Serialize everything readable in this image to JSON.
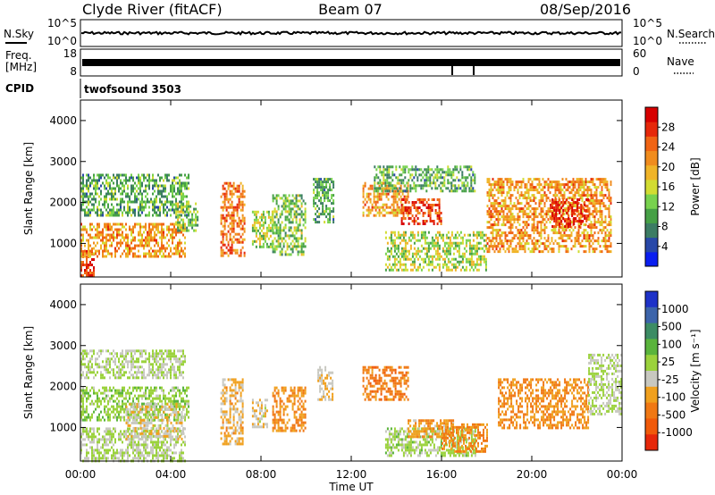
{
  "header": {
    "station": "Clyde River (fitACF)",
    "beam": "Beam 07",
    "date": "08/Sep/2016"
  },
  "panels": {
    "nsky_label": "N.Sky",
    "nsky_ticks": [
      "10^5",
      "10^0"
    ],
    "nsearch_label": "N.Search",
    "nsearch_ticks": [
      "10^5",
      "10^0"
    ],
    "freq_label_line1": "Freq.",
    "freq_label_line2": "[MHz]",
    "freq_ticks": [
      "18",
      "8"
    ],
    "nave_label": "Nave",
    "nave_ticks": [
      "60",
      "0"
    ],
    "cpid_label": "CPID",
    "cpid_value": "twofsound 3503"
  },
  "x_axis": {
    "label": "Time UT",
    "ticks": [
      "00:00",
      "04:00",
      "08:00",
      "12:00",
      "16:00",
      "20:00",
      "00:00"
    ]
  },
  "colors": {
    "power_scale": [
      "#0a1ef0",
      "#2848a8",
      "#3c7c64",
      "#46a046",
      "#78d24e",
      "#d2dc32",
      "#f0b428",
      "#f08c1e",
      "#f06414",
      "#e6280a",
      "#d70000"
    ],
    "velocity_scale": [
      "#1e32c8",
      "#3c64aa",
      "#3c8c64",
      "#5ab43c",
      "#9bd23c",
      "#c8c8c0",
      "#f0a01e",
      "#f07814",
      "#f05a0a",
      "#e6280a"
    ]
  },
  "chart_data": [
    {
      "type": "heatmap",
      "title": "Power",
      "xlabel": "Time UT",
      "ylabel": "Slant Range [km]",
      "xlim": [
        0,
        24
      ],
      "ylim": [
        180,
        4500
      ],
      "y_ticks": [
        1000,
        2000,
        3000,
        4000
      ],
      "colorbar": {
        "label": "Power [dB]",
        "ticks": [
          "4",
          "8",
          "12",
          "16",
          "20",
          "24",
          "28"
        ],
        "range": [
          0,
          30
        ]
      },
      "echo_regions": [
        {
          "t": [
            0.0,
            0.6
          ],
          "r": [
            200,
            900
          ],
          "value": 26
        },
        {
          "t": [
            0.0,
            4.6
          ],
          "r": [
            700,
            1500
          ],
          "value": 20
        },
        {
          "t": [
            0.0,
            4.8
          ],
          "r": [
            1700,
            2700
          ],
          "value": 10
        },
        {
          "t": [
            4.2,
            5.2
          ],
          "r": [
            1300,
            2000
          ],
          "value": 12
        },
        {
          "t": [
            6.2,
            7.3
          ],
          "r": [
            700,
            2500
          ],
          "value": 22
        },
        {
          "t": [
            7.6,
            8.5
          ],
          "r": [
            900,
            1800
          ],
          "value": 14
        },
        {
          "t": [
            8.5,
            10.0
          ],
          "r": [
            700,
            2200
          ],
          "value": 12
        },
        {
          "t": [
            10.3,
            11.2
          ],
          "r": [
            1500,
            2600
          ],
          "value": 10
        },
        {
          "t": [
            12.5,
            14.5
          ],
          "r": [
            1700,
            2500
          ],
          "value": 20
        },
        {
          "t": [
            14.2,
            16.0
          ],
          "r": [
            1500,
            2100
          ],
          "value": 26
        },
        {
          "t": [
            13.5,
            18.0
          ],
          "r": [
            350,
            1300
          ],
          "value": 14
        },
        {
          "t": [
            13.0,
            17.5
          ],
          "r": [
            2300,
            2900
          ],
          "value": 10
        },
        {
          "t": [
            18.0,
            23.5
          ],
          "r": [
            800,
            2600
          ],
          "value": 20
        },
        {
          "t": [
            20.8,
            22.5
          ],
          "r": [
            1400,
            2100
          ],
          "value": 27
        }
      ]
    },
    {
      "type": "heatmap",
      "title": "Velocity",
      "xlabel": "Time UT",
      "ylabel": "Slant Range [km]",
      "xlim": [
        0,
        24
      ],
      "ylim": [
        180,
        4500
      ],
      "y_ticks": [
        1000,
        2000,
        3000,
        4000
      ],
      "colorbar": {
        "label": "Velocity [m s⁻¹]",
        "ticks": [
          "1000",
          "500",
          "100",
          "25",
          "-25",
          "-100",
          "-500",
          "-1000"
        ],
        "range": [
          -1200,
          1200
        ]
      },
      "echo_regions": [
        {
          "t": [
            0.0,
            4.6
          ],
          "r": [
            2200,
            2900
          ],
          "value": 0
        },
        {
          "t": [
            0.0,
            4.8
          ],
          "r": [
            1200,
            2000
          ],
          "value": 150
        },
        {
          "t": [
            0.0,
            4.6
          ],
          "r": [
            200,
            1000
          ],
          "value": 0
        },
        {
          "t": [
            2.0,
            4.6
          ],
          "r": [
            700,
            1600
          ],
          "value": -150
        },
        {
          "t": [
            6.2,
            7.2
          ],
          "r": [
            600,
            2200
          ],
          "value": -300
        },
        {
          "t": [
            7.6,
            8.3
          ],
          "r": [
            1000,
            1700
          ],
          "value": -150
        },
        {
          "t": [
            8.5,
            10.0
          ],
          "r": [
            900,
            2000
          ],
          "value": -500
        },
        {
          "t": [
            10.5,
            11.2
          ],
          "r": [
            1700,
            2500
          ],
          "value": -200
        },
        {
          "t": [
            12.5,
            14.5
          ],
          "r": [
            1700,
            2500
          ],
          "value": -600
        },
        {
          "t": [
            13.5,
            17.5
          ],
          "r": [
            300,
            1000
          ],
          "value": 80
        },
        {
          "t": [
            14.5,
            16.5
          ],
          "r": [
            800,
            1200
          ],
          "value": -400
        },
        {
          "t": [
            16.0,
            18.0
          ],
          "r": [
            400,
            1100
          ],
          "value": -500
        },
        {
          "t": [
            18.5,
            22.5
          ],
          "r": [
            1000,
            2200
          ],
          "value": -500
        },
        {
          "t": [
            22.5,
            24.0
          ],
          "r": [
            1300,
            2800
          ],
          "value": 0
        }
      ]
    }
  ]
}
